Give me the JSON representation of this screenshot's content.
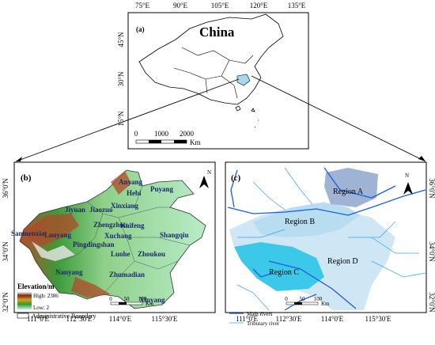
{
  "panel_a": {
    "label": "(a)",
    "title": "China",
    "lon_labels": [
      "75°E",
      "90°E",
      "105°E",
      "120°E",
      "135°E"
    ],
    "lat_labels": [
      "45°N",
      "30°N",
      "15°N"
    ],
    "scale_labels": [
      "0",
      "1000",
      "2000"
    ],
    "scale_unit": "Km"
  },
  "panel_b": {
    "label": "(b)",
    "north": "N",
    "lat_labels": [
      "36°0'N",
      "34°0'N",
      "32°0'N"
    ],
    "lon_labels": [
      "111°0'E",
      "112°30'E",
      "114°0'E",
      "115°30'E"
    ],
    "cities": [
      "Anyang",
      "Hebi",
      "Puyang",
      "Xinxiang",
      "Jiaozuo",
      "Jiyuan",
      "Sanmenxia",
      "Luoyang",
      "Zhengzhou",
      "Kaifeng",
      "Xuchang",
      "Pingdingshan",
      "Shangqiu",
      "Luohe",
      "Zhoukou",
      "Nanyang",
      "Zhumadian",
      "Xinyang"
    ],
    "legend": {
      "title": "Elevation/m",
      "high": "High: 2386",
      "low": "Low: 2",
      "boundary": "Administrative Boundary"
    },
    "scale_labels": [
      "0",
      "50",
      "100"
    ],
    "scale_unit": "Km"
  },
  "panel_c": {
    "label": "(c)",
    "north": "N",
    "lat_labels": [
      "36°0'N",
      "34°0'N",
      "32°0'N"
    ],
    "lon_labels": [
      "111°0'E",
      "112°30'E",
      "114°0'E",
      "115°30'E"
    ],
    "regions": [
      "Region A",
      "Region B",
      "Region C",
      "Region D"
    ],
    "legend": {
      "main": "Main rivers",
      "tributary": "Tributary river"
    },
    "scale_labels": [
      "0",
      "50",
      "100"
    ],
    "scale_unit": "Km"
  }
}
